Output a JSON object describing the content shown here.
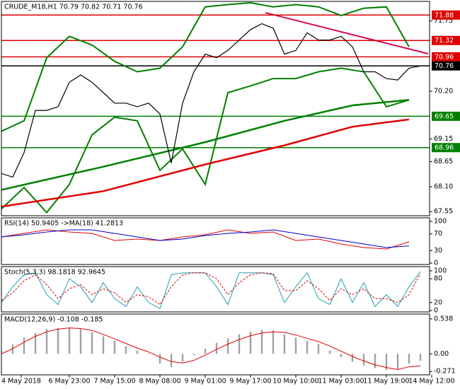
{
  "chart_data": [
    {
      "type": "line",
      "title": "CRUDE_M18,H1  70.79 70.82 70.71 70.76",
      "ylim": [
        67.46,
        72.18
      ],
      "xlim": [
        0,
        152
      ],
      "yticks": [
        71.75,
        {
          "value": 70.2,
          "label": "70.20"
        },
        69.15,
        68.65,
        {
          "value": 68.1,
          "label": "68.10"
        },
        67.55
      ],
      "levels": [
        {
          "value": 71.88,
          "color": "#e00000"
        },
        {
          "value": 71.32,
          "color": "#e00000"
        },
        {
          "value": 70.96,
          "color": "#e00000"
        },
        {
          "value": 70.76,
          "color": "#000000"
        },
        {
          "value": 69.65,
          "color": "#008000"
        },
        {
          "value": 68.96,
          "color": "#008000"
        }
      ],
      "series": [
        {
          "color": "#008000",
          "style": "line",
          "width": 2,
          "x": [
            0,
            8,
            16,
            24,
            32,
            40,
            48,
            56,
            64,
            72,
            80,
            88,
            96,
            104,
            112,
            120,
            128,
            136,
            144
          ],
          "values": [
            69.32,
            69.55,
            70.94,
            71.41,
            71.22,
            70.86,
            70.63,
            70.71,
            71.18,
            72.06,
            72.11,
            72.15,
            72.06,
            72.11,
            72.06,
            71.87,
            72.03,
            72.06,
            71.18
          ]
        },
        {
          "color": "#008000",
          "style": "line",
          "width": 2,
          "x": [
            0,
            8,
            16,
            24,
            32,
            40,
            48,
            56,
            64,
            72,
            80,
            88,
            96,
            104,
            112,
            120,
            128,
            136,
            144
          ],
          "values": [
            67.61,
            68.08,
            67.53,
            68.15,
            69.24,
            69.63,
            69.55,
            68.46,
            68.93,
            68.15,
            70.17,
            70.32,
            70.48,
            70.48,
            70.63,
            70.71,
            70.63,
            69.86,
            70.01
          ]
        },
        {
          "color": "#e00000",
          "style": "line",
          "width": 2.5,
          "x": [
            0,
            36,
            72,
            100,
            124,
            144
          ],
          "values": [
            67.66,
            68.0,
            68.59,
            69.01,
            69.42,
            69.58
          ]
        },
        {
          "color": "#008000",
          "style": "line",
          "width": 2.5,
          "x": [
            0,
            36,
            72,
            100,
            124,
            144
          ],
          "values": [
            68.03,
            68.54,
            69.08,
            69.55,
            69.89,
            70.01
          ]
        },
        {
          "color": "#000000",
          "style": "line",
          "width": 1.2,
          "x": [
            0,
            4,
            8,
            12,
            16,
            20,
            24,
            28,
            32,
            36,
            40,
            44,
            48,
            52,
            56,
            60,
            64,
            68,
            72,
            76,
            80,
            84,
            88,
            92,
            96,
            100,
            104,
            108,
            112,
            116,
            120,
            124,
            128,
            132,
            136,
            140,
            144,
            148
          ],
          "values": [
            68.39,
            68.31,
            68.85,
            69.78,
            69.78,
            69.86,
            70.4,
            70.56,
            70.4,
            70.17,
            69.94,
            69.94,
            69.86,
            69.94,
            69.7,
            68.62,
            69.94,
            70.63,
            71.02,
            70.94,
            71.1,
            71.33,
            71.56,
            71.69,
            71.59,
            71.02,
            71.1,
            71.49,
            71.33,
            71.33,
            71.41,
            71.18,
            70.63,
            70.63,
            70.48,
            70.45,
            70.71,
            70.76
          ]
        }
      ]
    },
    {
      "type": "line",
      "title": "RSI(14) 50.9405  ->MA(18) 41.2813",
      "ylim": [
        -3.4,
        108.5
      ],
      "xlim": [
        0,
        152
      ],
      "yticks": [
        100,
        70,
        30,
        0
      ],
      "series": [
        {
          "color": "#e00000",
          "style": "line",
          "width": 1,
          "x": [
            0,
            8,
            16,
            24,
            32,
            40,
            48,
            56,
            64,
            72,
            80,
            88,
            96,
            104,
            112,
            120,
            128,
            136,
            144
          ],
          "values": [
            62.7,
            71.2,
            79.7,
            74.6,
            71.2,
            54.2,
            57.6,
            54.2,
            62.7,
            67.8,
            79.7,
            71.2,
            74.6,
            54.2,
            57.6,
            45.8,
            37.3,
            33.9,
            50.9405
          ]
        },
        {
          "color": "#0000cc",
          "style": "line",
          "width": 1,
          "x": [
            0,
            8,
            16,
            24,
            32,
            40,
            48,
            56,
            64,
            72,
            80,
            88,
            96,
            104,
            112,
            120,
            128,
            136,
            144
          ],
          "values": [
            62.7,
            67.8,
            74.6,
            79.7,
            79.7,
            71.2,
            62.7,
            54.2,
            57.6,
            66.1,
            71.2,
            74.6,
            79.7,
            71.2,
            62.7,
            54.2,
            45.8,
            37.3,
            41.2813
          ]
        }
      ]
    },
    {
      "type": "line",
      "title": "Stoch(5,3,3) 98.1818 92.9645",
      "ylim": [
        -3.5,
        110.5
      ],
      "xlim": [
        0,
        152
      ],
      "yticks": [
        100,
        80,
        20,
        0
      ],
      "series": [
        {
          "color": "#20a0b0",
          "style": "line",
          "width": 1,
          "x": [
            0,
            4,
            8,
            12,
            16,
            20,
            24,
            28,
            32,
            36,
            40,
            44,
            48,
            52,
            56,
            60,
            64,
            68,
            72,
            76,
            80,
            84,
            88,
            92,
            96,
            100,
            104,
            108,
            112,
            116,
            120,
            124,
            128,
            132,
            136,
            140,
            144,
            148
          ],
          "values": [
            20,
            60,
            90,
            95,
            40,
            15,
            80,
            60,
            20,
            70,
            30,
            10,
            60,
            20,
            5,
            90,
            95,
            95,
            95,
            60,
            15,
            95,
            95,
            95,
            90,
            20,
            60,
            95,
            30,
            15,
            80,
            20,
            70,
            10,
            40,
            10,
            60,
            98.1818
          ]
        },
        {
          "color": "#e00000",
          "style": "dash",
          "width": 1,
          "x": [
            0,
            4,
            8,
            12,
            16,
            20,
            24,
            28,
            32,
            36,
            40,
            44,
            48,
            52,
            56,
            60,
            64,
            68,
            72,
            76,
            80,
            84,
            88,
            92,
            96,
            100,
            104,
            108,
            112,
            116,
            120,
            124,
            128,
            132,
            136,
            140,
            144,
            148
          ],
          "values": [
            25,
            45,
            75,
            90,
            65,
            30,
            55,
            65,
            40,
            55,
            45,
            20,
            40,
            35,
            15,
            60,
            90,
            95,
            95,
            80,
            40,
            70,
            90,
            95,
            93,
            50,
            50,
            75,
            55,
            25,
            55,
            40,
            55,
            30,
            30,
            20,
            40,
            92.9645
          ]
        }
      ]
    },
    {
      "type": "bar",
      "title": "MACD(12,26,9) -0.108 -0.185",
      "ylim": [
        -0.323,
        0.613
      ],
      "xlim": [
        0,
        152
      ],
      "yticks": [
        0.538,
        {
          "value": 0,
          "label": "0.00"
        },
        -0.271
      ],
      "xticks": [
        {
          "value": 7,
          "label": "4 May 2018"
        },
        {
          "value": 24,
          "label": "6 May 23:00"
        },
        {
          "value": 40,
          "label": "7 May 15:00"
        },
        {
          "value": 56,
          "label": "8 May 08:00"
        },
        {
          "value": 72,
          "label": "9 May 01:00"
        },
        {
          "value": 88,
          "label": "9 May 17:00"
        },
        {
          "value": 104,
          "label": "10 May 10:00"
        },
        {
          "value": 120,
          "label": "11 May 03:00"
        },
        {
          "value": 136,
          "label": "11 May 19:00"
        },
        {
          "value": 152,
          "label": "14 May 12:00"
        }
      ],
      "series": [
        {
          "color": "#a0a0a0",
          "style": "bar",
          "width": 1,
          "x": [
            0,
            4,
            8,
            12,
            16,
            20,
            24,
            28,
            32,
            36,
            40,
            44,
            48,
            52,
            56,
            60,
            64,
            68,
            72,
            76,
            80,
            84,
            88,
            92,
            96,
            100,
            104,
            108,
            112,
            116,
            120,
            124,
            128,
            132,
            136,
            140,
            144,
            148
          ],
          "values": [
            0.05,
            0.15,
            0.25,
            0.32,
            0.38,
            0.4,
            0.4,
            0.38,
            0.33,
            0.27,
            0.2,
            0.12,
            0.05,
            0.0,
            -0.15,
            -0.2,
            -0.12,
            -0.02,
            0.08,
            0.17,
            0.24,
            0.3,
            0.34,
            0.37,
            0.36,
            0.3,
            0.25,
            0.2,
            0.15,
            0.05,
            -0.05,
            -0.12,
            -0.18,
            -0.22,
            -0.25,
            -0.23,
            -0.15,
            -0.108
          ]
        },
        {
          "color": "#e00000",
          "style": "line",
          "width": 1,
          "x": [
            0,
            4,
            8,
            12,
            16,
            20,
            24,
            28,
            32,
            36,
            40,
            44,
            48,
            52,
            56,
            60,
            64,
            68,
            72,
            76,
            80,
            84,
            88,
            92,
            96,
            100,
            104,
            108,
            112,
            116,
            120,
            124,
            128,
            132,
            136,
            140,
            144,
            148
          ],
          "values": [
            0.0,
            0.08,
            0.18,
            0.27,
            0.34,
            0.38,
            0.4,
            0.39,
            0.36,
            0.3,
            0.23,
            0.16,
            0.09,
            0.03,
            -0.05,
            -0.12,
            -0.14,
            -0.1,
            -0.02,
            0.07,
            0.15,
            0.22,
            0.28,
            0.32,
            0.34,
            0.33,
            0.29,
            0.24,
            0.19,
            0.12,
            0.04,
            -0.04,
            -0.11,
            -0.17,
            -0.21,
            -0.24,
            -0.2,
            -0.185
          ]
        }
      ]
    }
  ]
}
